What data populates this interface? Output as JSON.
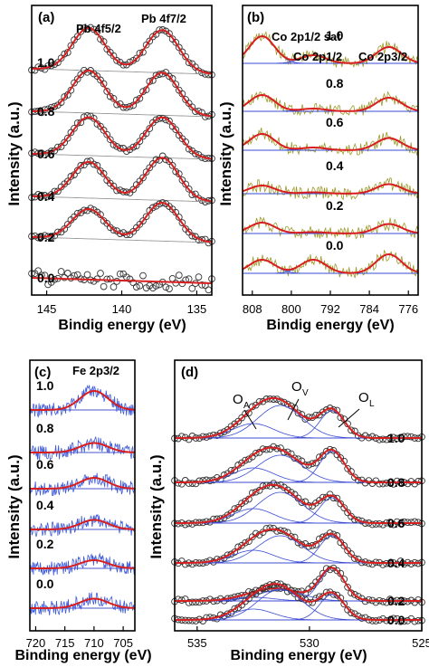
{
  "figure": {
    "panels": [
      {
        "id": "a",
        "tag": "(a)",
        "ylabel": "Intensity (a.u.)",
        "xlabel": "Bindig energy (eV)",
        "xlim": [
          146,
          134
        ],
        "xticks": [
          145,
          140,
          135
        ],
        "peak_labels": [
          "Pb 4f5/2",
          "Pb 4f7/2"
        ],
        "levels": [
          "1.0",
          "0.8",
          "0.6",
          "0.4",
          "0.2",
          "0.0"
        ]
      },
      {
        "id": "b",
        "tag": "(b)",
        "ylabel": "Intensity (a.u.)",
        "xlabel": "Bindig energy (eV)",
        "xlim": [
          810,
          774
        ],
        "xticks": [
          808,
          800,
          792,
          784,
          776
        ],
        "peak_labels": [
          "Co 2p1/2 sat",
          "Co 2p1/2",
          "Co 2p3/2"
        ],
        "levels": [
          "1.0",
          "0.8",
          "0.6",
          "0.4",
          "0.2",
          "0.0"
        ]
      },
      {
        "id": "c",
        "tag": "(c)",
        "ylabel": "Intensity (a.u.)",
        "xlabel": "Binding energy (eV)",
        "xlim": [
          721,
          703
        ],
        "xticks": [
          720,
          715,
          710,
          705
        ],
        "peak_labels": [
          "Fe 2p3/2"
        ],
        "levels": [
          "1.0",
          "0.8",
          "0.6",
          "0.4",
          "0.2",
          "0.0"
        ]
      },
      {
        "id": "d",
        "tag": "(d)",
        "ylabel": "Intensity (a.u.)",
        "xlabel": "Binding energy (eV)",
        "xlim": [
          536,
          525
        ],
        "xticks": [
          535,
          530,
          525
        ],
        "peak_labels": [
          {
            "main": "O",
            "sub": "A"
          },
          {
            "main": "O",
            "sub": "V"
          },
          {
            "main": "O",
            "sub": "L"
          }
        ],
        "levels": [
          "1.0",
          "0.8",
          "0.6",
          "0.4",
          "0.2",
          "0.0"
        ]
      }
    ]
  },
  "chart_data": [
    {
      "type": "line",
      "panel": "a",
      "title": "",
      "xlabel": "Bindig energy (eV)",
      "ylabel": "Intensity (a.u.)",
      "xlim": [
        146,
        134
      ],
      "x_reversed": true,
      "peaks_eV": [
        142.2,
        137.3
      ],
      "series": [
        {
          "name": "1.0",
          "peak_heights": [
            1.0,
            1.0
          ]
        },
        {
          "name": "0.8",
          "peak_heights": [
            1.0,
            1.0
          ]
        },
        {
          "name": "0.6",
          "peak_heights": [
            0.9,
            0.95
          ]
        },
        {
          "name": "0.4",
          "peak_heights": [
            0.85,
            1.0
          ]
        },
        {
          "name": "0.2",
          "peak_heights": [
            0.7,
            0.9
          ]
        },
        {
          "name": "0.0",
          "peak_heights": [
            0.0,
            0.0
          ]
        }
      ]
    },
    {
      "type": "line",
      "panel": "b",
      "title": "",
      "xlabel": "Bindig energy (eV)",
      "ylabel": "Intensity (a.u.)",
      "xlim": [
        810,
        774
      ],
      "x_reversed": true,
      "peaks_eV": [
        806,
        795.5,
        780
      ],
      "series": [
        {
          "name": "1.0",
          "peak_heights": [
            1.0,
            0.3,
            0.6
          ]
        },
        {
          "name": "0.8",
          "peak_heights": [
            0.6,
            0.1,
            0.5
          ]
        },
        {
          "name": "0.6",
          "peak_heights": [
            0.6,
            0.1,
            0.45
          ]
        },
        {
          "name": "0.4",
          "peak_heights": [
            0.3,
            0.05,
            0.35
          ]
        },
        {
          "name": "0.2",
          "peak_heights": [
            0.4,
            0.05,
            0.35
          ]
        },
        {
          "name": "0.0",
          "peak_heights": [
            0.5,
            0.5,
            0.7
          ]
        }
      ]
    },
    {
      "type": "line",
      "panel": "c",
      "title": "",
      "xlabel": "Binding energy (eV)",
      "ylabel": "Intensity (a.u.)",
      "xlim": [
        721,
        703
      ],
      "x_reversed": true,
      "peaks_eV": [
        710
      ],
      "series": [
        {
          "name": "1.0",
          "peak_heights": [
            0.7
          ]
        },
        {
          "name": "0.8",
          "peak_heights": [
            0.35
          ]
        },
        {
          "name": "0.6",
          "peak_heights": [
            0.4
          ]
        },
        {
          "name": "0.4",
          "peak_heights": [
            0.35
          ]
        },
        {
          "name": "0.2",
          "peak_heights": [
            0.3
          ]
        },
        {
          "name": "0.0",
          "peak_heights": [
            0.35
          ]
        }
      ]
    },
    {
      "type": "line",
      "panel": "d",
      "title": "",
      "xlabel": "Binding energy (eV)",
      "ylabel": "Intensity (a.u.)",
      "xlim": [
        536,
        525
      ],
      "x_reversed": true,
      "peaks_eV": [
        532.5,
        531.3,
        529
      ],
      "series": [
        {
          "name": "1.0",
          "peak_heights": [
            0.4,
            0.9,
            0.75
          ]
        },
        {
          "name": "0.8",
          "peak_heights": [
            0.4,
            0.75,
            0.85
          ]
        },
        {
          "name": "0.6",
          "peak_heights": [
            0.4,
            0.85,
            0.7
          ]
        },
        {
          "name": "0.4",
          "peak_heights": [
            0.35,
            0.75,
            0.75
          ]
        },
        {
          "name": "0.2",
          "peak_heights": [
            0.1,
            0.3,
            0.9
          ]
        },
        {
          "name": "0.0",
          "peak_heights": [
            0.3,
            0.85,
            0.7
          ]
        }
      ]
    }
  ]
}
